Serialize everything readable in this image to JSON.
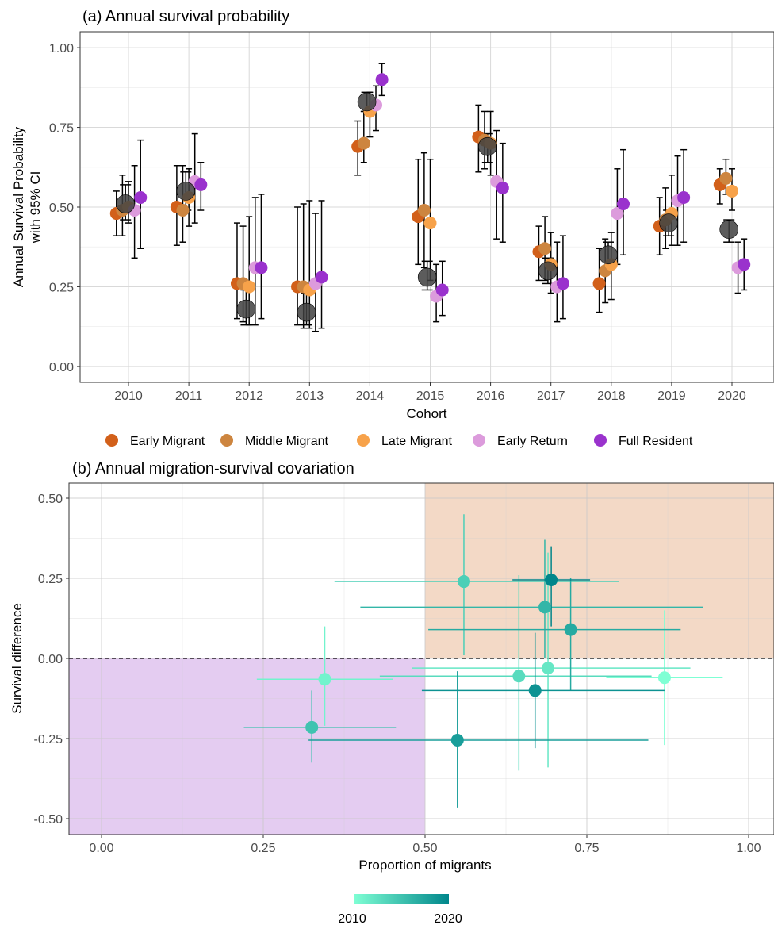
{
  "chart_data": [
    {
      "type": "scatter",
      "title": "(a) Annual survival probability",
      "xlabel": "Cohort",
      "ylabel_lines": [
        "Annual Survival Probability",
        "with 95% CI"
      ],
      "ylim": [
        -0.05,
        1.05
      ],
      "yticks": [
        0.0,
        0.25,
        0.5,
        0.75,
        1.0
      ],
      "ytick_labels": [
        "0.00",
        "0.25",
        "0.50",
        "0.75",
        "1.00"
      ],
      "categories": [
        "2010",
        "2011",
        "2012",
        "2013",
        "2014",
        "2015",
        "2016",
        "2017",
        "2018",
        "2019",
        "2020"
      ],
      "grid": true,
      "legend_position": "bottom",
      "series": [
        {
          "name": "Early Migrant",
          "color": "#d2601a",
          "offset": -0.2,
          "values": [
            0.48,
            0.5,
            0.26,
            0.25,
            0.69,
            0.47,
            0.72,
            0.36,
            0.26,
            0.44,
            0.57
          ],
          "lower": [
            0.41,
            0.38,
            0.15,
            0.13,
            0.6,
            0.32,
            0.61,
            0.27,
            0.17,
            0.35,
            0.51
          ],
          "upper": [
            0.55,
            0.63,
            0.45,
            0.5,
            0.77,
            0.65,
            0.82,
            0.44,
            0.37,
            0.53,
            0.62
          ]
        },
        {
          "name": "Middle Migrant",
          "color": "#cd853f",
          "offset": -0.1,
          "values": [
            0.49,
            0.49,
            0.26,
            0.25,
            0.7,
            0.49,
            0.71,
            0.37,
            0.3,
            0.46,
            0.59
          ],
          "lower": [
            0.41,
            0.39,
            0.14,
            0.12,
            0.64,
            0.31,
            0.62,
            0.27,
            0.2,
            0.37,
            0.54
          ],
          "upper": [
            0.6,
            0.63,
            0.44,
            0.51,
            0.8,
            0.67,
            0.8,
            0.47,
            0.4,
            0.56,
            0.65
          ]
        },
        {
          "name": "Late Migrant",
          "color": "#f7a24a",
          "offset": 0,
          "values": [
            0.5,
            0.53,
            0.25,
            0.24,
            0.8,
            0.45,
            0.7,
            0.32,
            0.32,
            0.48,
            0.55
          ],
          "lower": [
            0.45,
            0.44,
            0.13,
            0.12,
            0.72,
            0.27,
            0.6,
            0.23,
            0.21,
            0.38,
            0.49
          ],
          "upper": [
            0.58,
            0.62,
            0.47,
            0.52,
            0.86,
            0.65,
            0.8,
            0.42,
            0.42,
            0.6,
            0.62
          ]
        },
        {
          "name": "Early Return",
          "color": "#dc9bdc",
          "offset": 0.1,
          "values": [
            0.49,
            0.58,
            0.31,
            0.26,
            0.82,
            0.22,
            0.58,
            0.25,
            0.48,
            0.52,
            0.31
          ],
          "lower": [
            0.34,
            0.45,
            0.13,
            0.11,
            0.74,
            0.14,
            0.4,
            0.14,
            0.32,
            0.38,
            0.23
          ],
          "upper": [
            0.63,
            0.73,
            0.53,
            0.48,
            0.88,
            0.32,
            0.74,
            0.39,
            0.62,
            0.66,
            0.39
          ]
        },
        {
          "name": "Full Resident",
          "color": "#9a32cd",
          "offset": 0.2,
          "values": [
            0.53,
            0.57,
            0.31,
            0.28,
            0.9,
            0.24,
            0.56,
            0.26,
            0.51,
            0.53,
            0.32
          ],
          "lower": [
            0.37,
            0.49,
            0.15,
            0.12,
            0.85,
            0.16,
            0.39,
            0.15,
            0.35,
            0.39,
            0.24
          ],
          "upper": [
            0.71,
            0.64,
            0.54,
            0.52,
            0.95,
            0.33,
            0.7,
            0.41,
            0.68,
            0.68,
            0.4
          ]
        }
      ],
      "overall": {
        "color": "#404040",
        "offset": -0.05,
        "values": [
          0.51,
          0.55,
          0.18,
          0.17,
          0.83,
          0.28,
          0.69,
          0.3,
          0.35,
          0.45,
          0.43
        ],
        "lower": [
          0.46,
          0.49,
          0.13,
          0.13,
          0.8,
          0.24,
          0.64,
          0.26,
          0.31,
          0.41,
          0.39
        ],
        "upper": [
          0.57,
          0.61,
          0.24,
          0.23,
          0.86,
          0.33,
          0.73,
          0.34,
          0.39,
          0.49,
          0.46
        ]
      }
    },
    {
      "type": "scatter",
      "title": "(b) Annual migration-survival covariation",
      "xlabel": "Proportion of migrants",
      "ylabel": "Survival difference",
      "xlim": [
        -0.05,
        1.05
      ],
      "ylim": [
        -0.55,
        0.55
      ],
      "xticks": [
        0.0,
        0.25,
        0.5,
        0.75,
        1.0
      ],
      "xtick_labels": [
        "0.00",
        "0.25",
        "0.50",
        "0.75",
        "1.00"
      ],
      "yticks": [
        -0.5,
        -0.25,
        0.0,
        0.25,
        0.5
      ],
      "ytick_labels": [
        "-0.50",
        "-0.25",
        "0.00",
        "0.25",
        "0.50"
      ],
      "grid": true,
      "reference_line_y": 0,
      "regions": [
        {
          "x": [
            0.5,
            1.05
          ],
          "y": [
            0,
            0.55
          ],
          "color": "#f3d9c6"
        },
        {
          "x": [
            -0.05,
            0.5
          ],
          "y": [
            -0.55,
            0
          ],
          "color": "#e4ccf1"
        }
      ],
      "color_scale": {
        "low_label": "2010",
        "high_label": "2020",
        "low": "#7fffd4",
        "high": "#00868b",
        "range": [
          2010,
          2020
        ]
      },
      "points": [
        {
          "year": 2010,
          "x": 0.87,
          "y": -0.06,
          "xmin": 0.78,
          "xmax": 0.96,
          "ymin": -0.27,
          "ymax": 0.15
        },
        {
          "year": 2011,
          "x": 0.345,
          "y": -0.065,
          "xmin": 0.24,
          "xmax": 0.45,
          "ymin": -0.21,
          "ymax": 0.1
        },
        {
          "year": 2012,
          "x": 0.69,
          "y": -0.03,
          "xmin": 0.48,
          "xmax": 0.91,
          "ymin": -0.34,
          "ymax": 0.33
        },
        {
          "year": 2013,
          "x": 0.645,
          "y": -0.055,
          "xmin": 0.43,
          "xmax": 0.85,
          "ymin": -0.35,
          "ymax": 0.26
        },
        {
          "year": 2014,
          "x": 0.56,
          "y": 0.24,
          "xmin": 0.36,
          "xmax": 0.8,
          "ymin": 0.01,
          "ymax": 0.45
        },
        {
          "year": 2015,
          "x": 0.325,
          "y": -0.215,
          "xmin": 0.22,
          "xmax": 0.455,
          "ymin": -0.325,
          "ymax": -0.1
        },
        {
          "year": 2016,
          "x": 0.685,
          "y": 0.16,
          "xmin": 0.4,
          "xmax": 0.93,
          "ymin": 0.0,
          "ymax": 0.37
        },
        {
          "year": 2017,
          "x": 0.725,
          "y": 0.09,
          "xmin": 0.505,
          "xmax": 0.895,
          "ymin": -0.1,
          "ymax": 0.25
        },
        {
          "year": 2018,
          "x": 0.55,
          "y": -0.255,
          "xmin": 0.32,
          "xmax": 0.845,
          "ymin": -0.465,
          "ymax": -0.04
        },
        {
          "year": 2019,
          "x": 0.67,
          "y": -0.1,
          "xmin": 0.495,
          "xmax": 0.87,
          "ymin": -0.28,
          "ymax": 0.08
        },
        {
          "year": 2020,
          "x": 0.695,
          "y": 0.245,
          "xmin": 0.635,
          "xmax": 0.755,
          "ymin": 0.1,
          "ymax": 0.35
        }
      ]
    }
  ]
}
